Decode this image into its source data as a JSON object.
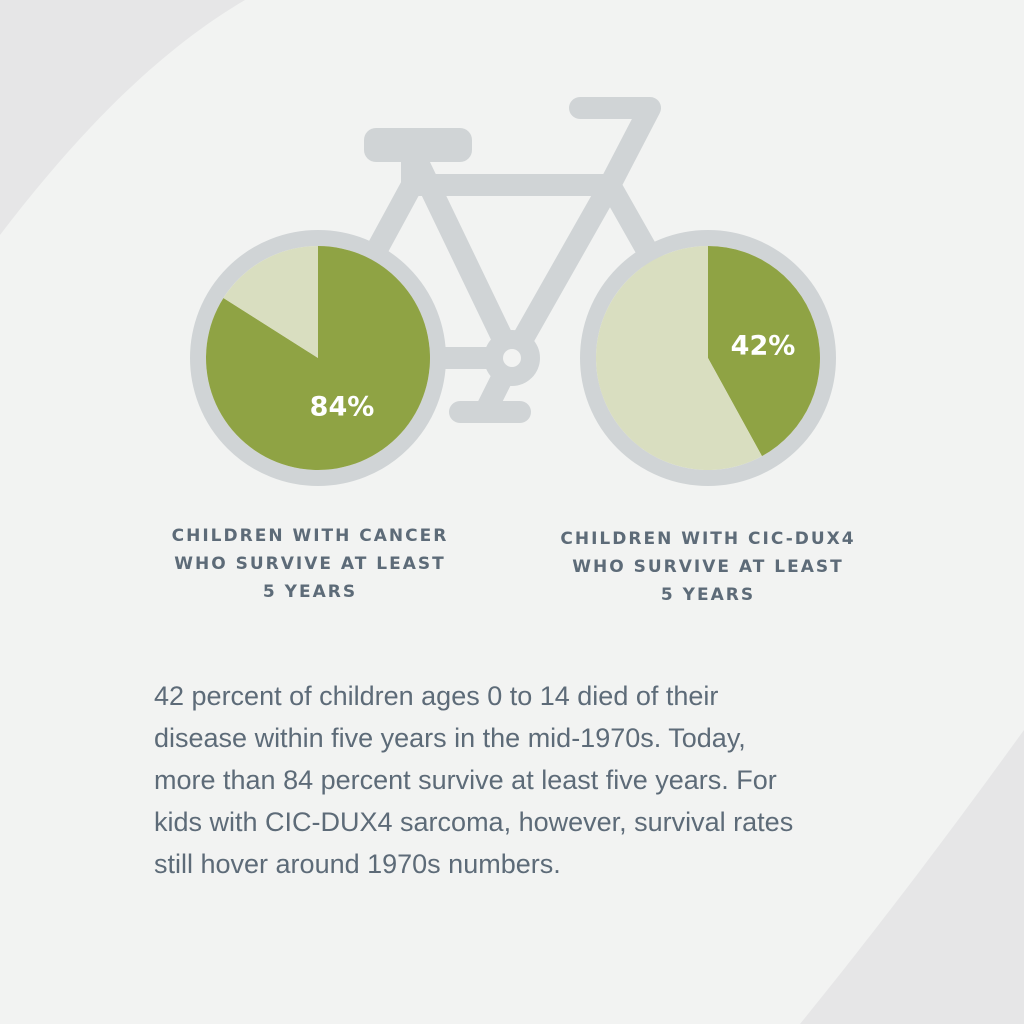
{
  "colors": {
    "background_outer": "#e6e6e7",
    "background_inner": "#f2f3f2",
    "bike_frame": "#d0d4d6",
    "survive": "#8fa344",
    "not_survive": "#d9dec0",
    "pct_text": "#ffffff",
    "text": "#5d6b78"
  },
  "chart_data": [
    {
      "type": "pie",
      "slices": [
        {
          "label": "survive",
          "value": 84,
          "color": "#8fa344"
        },
        {
          "label": "not survive",
          "value": 16,
          "color": "#d9dec0"
        }
      ],
      "data_label": "84%",
      "caption_lines": [
        "CHILDREN WITH CANCER",
        "WHO SURVIVE AT LEAST",
        "5 YEARS"
      ]
    },
    {
      "type": "pie",
      "slices": [
        {
          "label": "survive",
          "value": 42,
          "color": "#8fa344"
        },
        {
          "label": "not survive",
          "value": 58,
          "color": "#d9dec0"
        }
      ],
      "data_label": "42%",
      "caption_lines": [
        "CHILDREN WITH CIC-DUX4",
        "WHO SURVIVE AT LEAST",
        "5 YEARS"
      ]
    }
  ],
  "paragraph_lines": [
    "42 percent of children ages 0 to 14 died of their",
    "disease within five years in the mid-1970s. Today,",
    "more than 84 percent survive at least five years. For",
    "kids with CIC-DUX4 sarcoma, however, survival rates",
    "still hover around 1970s numbers."
  ]
}
